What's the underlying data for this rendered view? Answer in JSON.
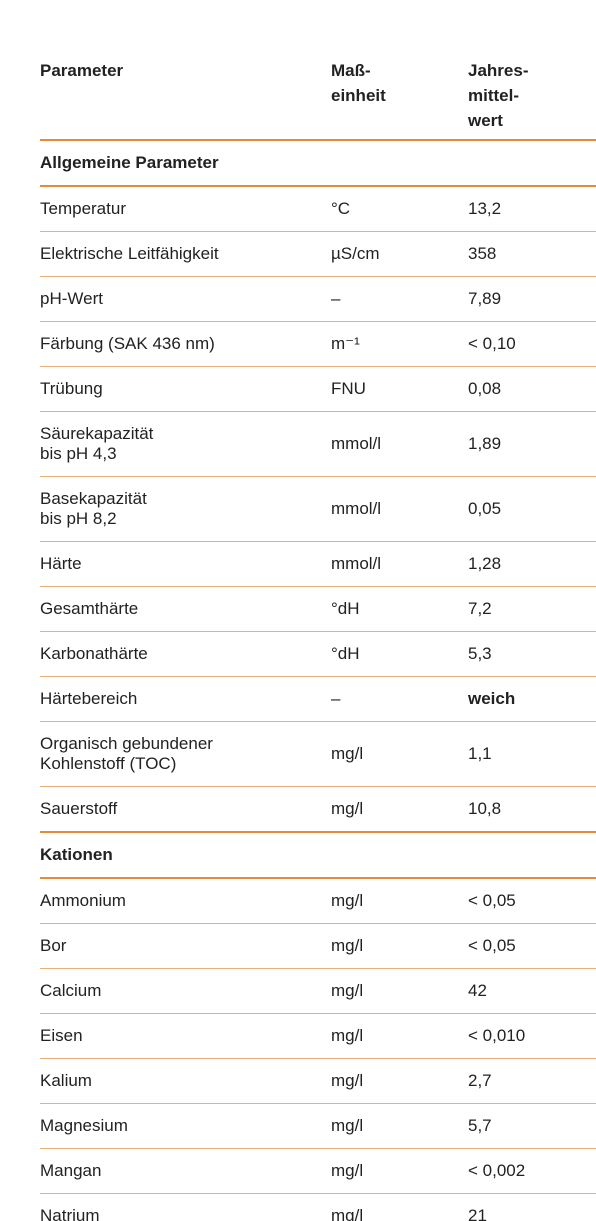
{
  "header": [
    "Parameter",
    "Maß-\neinheit",
    "Jahres-\nmittel-\nwert"
  ],
  "sections": [
    {
      "title": "Allgemeine Parameter",
      "rows": [
        [
          "Temperatur",
          "°C",
          "13,2"
        ],
        [
          "Elektrische Leitfähigkeit",
          "µS/cm",
          "358"
        ],
        [
          "pH-Wert",
          "–",
          "7,89"
        ],
        [
          "Färbung (SAK 436 nm)",
          "m⁻¹",
          "< 0,10"
        ],
        [
          "Trübung",
          "FNU",
          "0,08"
        ],
        [
          "Säurekapazität\nbis pH 4,3",
          "mmol/l",
          "1,89"
        ],
        [
          "Basekapazität\nbis pH 8,2",
          "mmol/l",
          "0,05"
        ],
        [
          "Härte",
          "mmol/l",
          "1,28"
        ],
        [
          "Gesamthärte",
          "°dH",
          "7,2"
        ],
        [
          "Karbonathärte",
          "°dH",
          "5,3"
        ],
        [
          "Härtebereich",
          "–",
          "weich"
        ],
        [
          "Organisch gebundener\nKohlenstoff (TOC)",
          "mg/l",
          "1,1"
        ],
        [
          "Sauerstoff",
          "mg/l",
          "10,8"
        ]
      ]
    },
    {
      "title": "Kationen",
      "rows": [
        [
          "Ammonium",
          "mg/l",
          "< 0,05"
        ],
        [
          "Bor",
          "mg/l",
          "< 0,05"
        ],
        [
          "Calcium",
          "mg/l",
          "42"
        ],
        [
          "Eisen",
          "mg/l",
          "< 0,010"
        ],
        [
          "Kalium",
          "mg/l",
          "2,7"
        ],
        [
          "Magnesium",
          "mg/l",
          "5,7"
        ],
        [
          "Mangan",
          "mg/l",
          "< 0,002"
        ],
        [
          "Natrium",
          "mg/l",
          "21"
        ]
      ]
    }
  ]
}
